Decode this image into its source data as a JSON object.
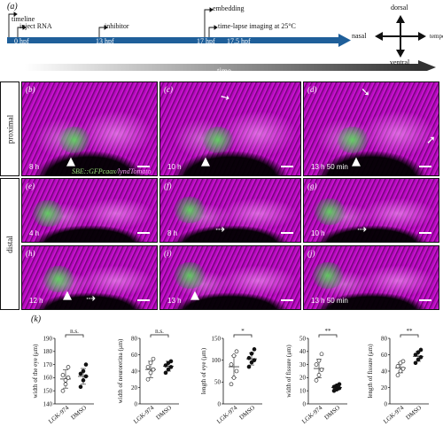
{
  "panel_a": {
    "label": "(a)",
    "events": [
      {
        "name": "timeline",
        "time": "0 hpf"
      },
      {
        "name": "inject RNA",
        "time": ""
      },
      {
        "name": "inhibitor",
        "time": "13 hpf"
      },
      {
        "name": "embedding",
        "time": "17 hpf"
      },
      {
        "name": "time-lapse imaging at 25°C",
        "time": "17.5 hpf"
      }
    ]
  },
  "orientation": {
    "dorsal": "dorsal",
    "ventral": "ventral",
    "nasal": "nasal",
    "temporal": "temporal"
  },
  "time_bar": "time",
  "rows": {
    "proximal": "proximal",
    "distal": "distal"
  },
  "legend": {
    "sbe": "SBE::GFPcaax",
    "sep": "/",
    "lyn": "lyndTomato"
  },
  "micro_panels": [
    {
      "label": "(b)",
      "time": "8 h"
    },
    {
      "label": "(c)",
      "time": "10 h"
    },
    {
      "label": "(d)",
      "time": "13 h 50 min"
    },
    {
      "label": "(e)",
      "time": "4 h"
    },
    {
      "label": "(f)",
      "time": "8 h"
    },
    {
      "label": "(g)",
      "time": "10 h"
    },
    {
      "label": "(h)",
      "time": "12 h"
    },
    {
      "label": "(i)",
      "time": "13 h"
    },
    {
      "label": "(j)",
      "time": "13 h 50 min"
    }
  ],
  "panel_k": {
    "label": "(k)"
  },
  "chart_data": [
    {
      "type": "scatter",
      "ylabel": "width of the eye (μm)",
      "ylim": [
        140,
        190
      ],
      "yticks": [
        140,
        150,
        160,
        170,
        180,
        190
      ],
      "categories": [
        "LGK-974",
        "DMSO"
      ],
      "significance": "n.s.",
      "series": [
        {
          "name": "LGK-974",
          "values": [
            150,
            155,
            160,
            162,
            158,
            168
          ],
          "mean": 159,
          "sd": 7
        },
        {
          "name": "DMSO",
          "values": [
            153,
            158,
            161,
            163,
            165,
            170
          ],
          "mean": 161,
          "sd": 6
        }
      ]
    },
    {
      "type": "scatter",
      "ylabel": "width of neuroretina (μm)",
      "ylim": [
        0,
        80
      ],
      "yticks": [
        0,
        20,
        40,
        60,
        80
      ],
      "categories": [
        "LGK-974",
        "DMSO"
      ],
      "significance": "n.s.",
      "series": [
        {
          "name": "LGK-974",
          "values": [
            30,
            38,
            42,
            45,
            50,
            55
          ],
          "mean": 42,
          "sd": 10
        },
        {
          "name": "DMSO",
          "values": [
            38,
            42,
            45,
            47,
            50,
            52
          ],
          "mean": 46,
          "sd": 6
        }
      ]
    },
    {
      "type": "scatter",
      "ylabel": "length of eye (μm)",
      "ylim": [
        0,
        150
      ],
      "yticks": [
        0,
        50,
        100,
        150
      ],
      "categories": [
        "LGK-974",
        "DMSO"
      ],
      "significance": "*",
      "series": [
        {
          "name": "LGK-974",
          "values": [
            45,
            60,
            75,
            90,
            110,
            120
          ],
          "mean": 85,
          "sd": 25
        },
        {
          "name": "DMSO",
          "values": [
            85,
            95,
            100,
            105,
            115,
            125
          ],
          "mean": 103,
          "sd": 14
        }
      ]
    },
    {
      "type": "scatter",
      "ylabel": "width of fissure (μm)",
      "ylim": [
        0,
        50
      ],
      "yticks": [
        0,
        10,
        20,
        30,
        40,
        50
      ],
      "categories": [
        "LGK-974",
        "DMSO"
      ],
      "significance": "**",
      "series": [
        {
          "name": "LGK-974",
          "values": [
            18,
            22,
            26,
            30,
            33,
            38
          ],
          "mean": 27,
          "sd": 7
        },
        {
          "name": "DMSO",
          "values": [
            10,
            11,
            12,
            13,
            14,
            15
          ],
          "mean": 12.5,
          "sd": 2
        }
      ]
    },
    {
      "type": "scatter",
      "ylabel": "length of fissure (μm)",
      "ylim": [
        0,
        80
      ],
      "yticks": [
        0,
        20,
        40,
        60,
        80
      ],
      "categories": [
        "LGK-974",
        "DMSO"
      ],
      "significance": "**",
      "series": [
        {
          "name": "LGK-974",
          "values": [
            35,
            40,
            43,
            46,
            50,
            52
          ],
          "mean": 44,
          "sd": 6
        },
        {
          "name": "DMSO",
          "values": [
            50,
            54,
            57,
            60,
            63,
            66
          ],
          "mean": 58,
          "sd": 6
        }
      ]
    }
  ]
}
